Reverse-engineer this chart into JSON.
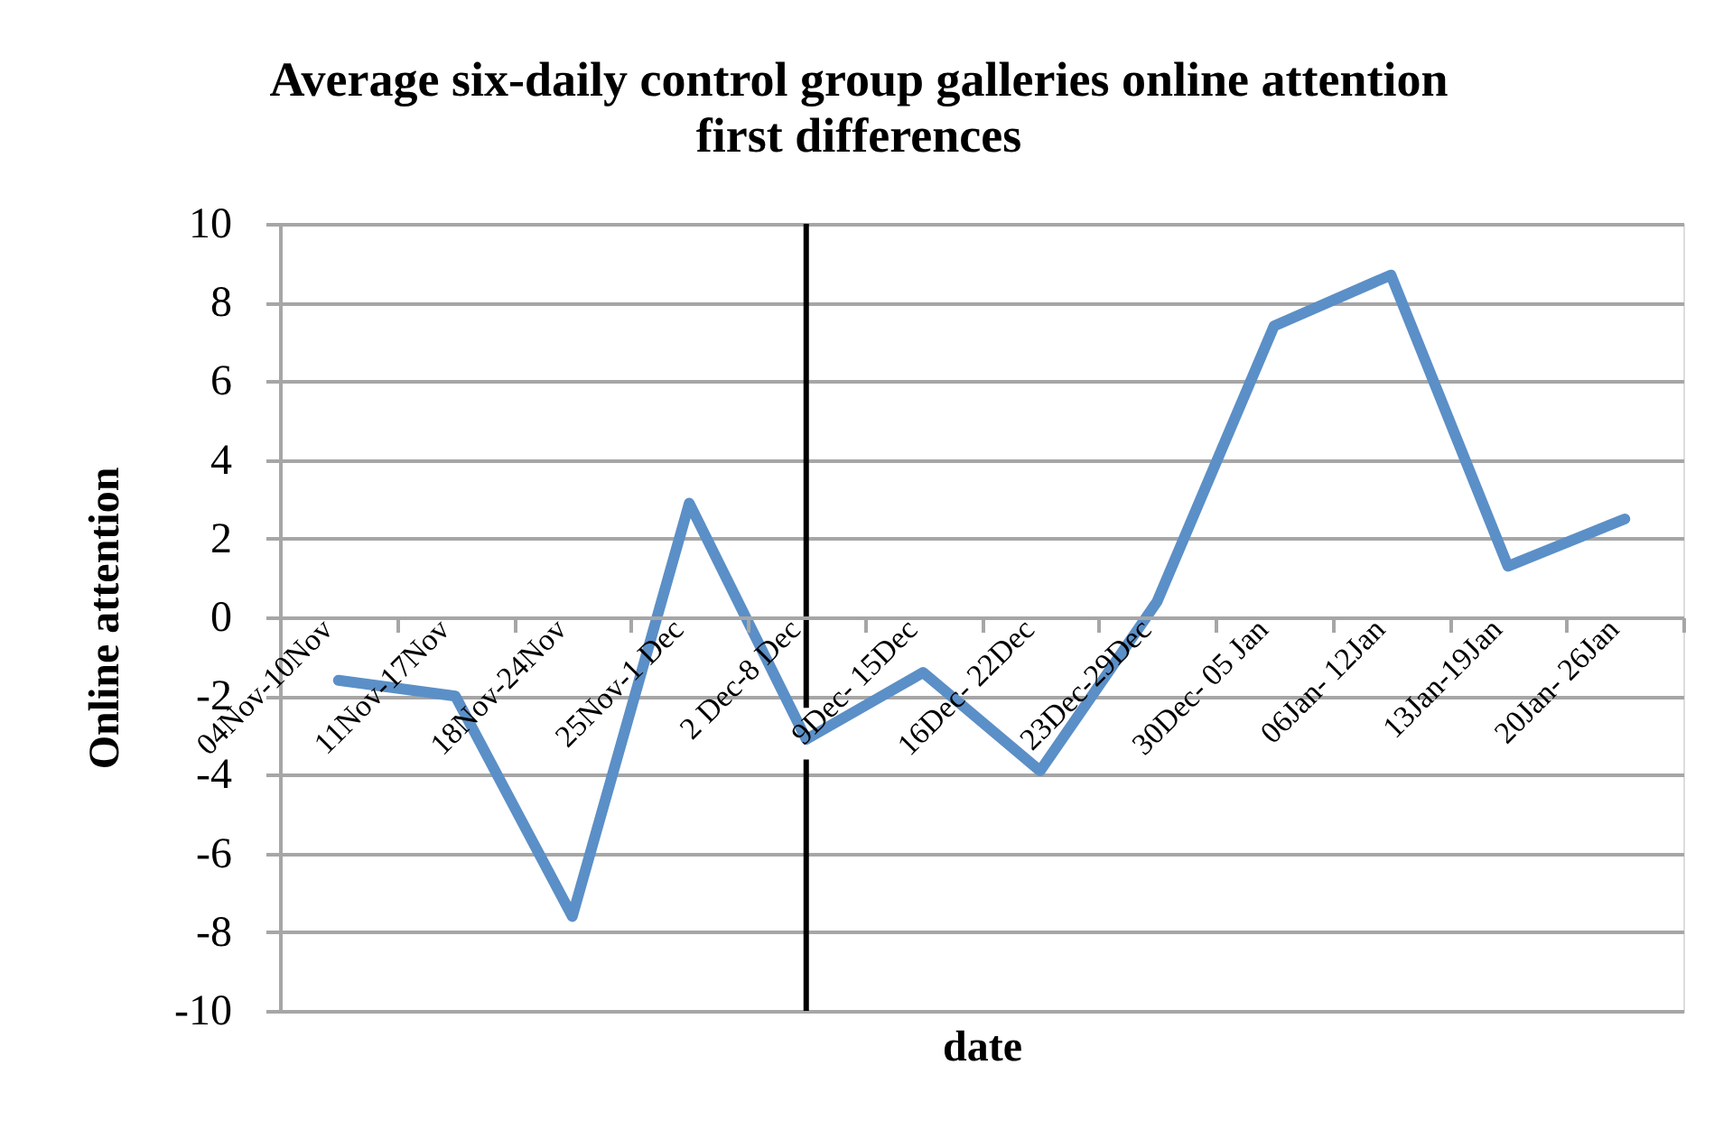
{
  "chart_data": {
    "type": "line",
    "title": "Average six-daily control group galleries online attention\nfirst differences",
    "xlabel": "date",
    "ylabel": "Online attention",
    "categories": [
      "04Nov-10Nov",
      "11Nov-17Nov",
      "18Nov-24Nov",
      "25Nov-1 Dec",
      "2 Dec-8 Dec",
      "9Dec- 15Dec",
      "16Dec- 22Dec",
      "23Dec-29Dec",
      "30Dec- 05 Jan",
      "06Jan- 12Jan",
      "13Jan-19Jan",
      "20Jan- 26Jan"
    ],
    "series": [
      {
        "color": "#5b8fc7",
        "values": [
          -1.6,
          -2.0,
          -7.6,
          2.9,
          -3.1,
          -1.4,
          -3.9,
          0.4,
          7.4,
          8.7,
          1.3,
          2.5
        ]
      }
    ],
    "ylim": [
      -10,
      10
    ],
    "yticks": [
      -10,
      -8,
      -6,
      -4,
      -2,
      0,
      2,
      4,
      6,
      8,
      10
    ],
    "grid": "y",
    "line_style": "solid",
    "ref_lines": [
      {
        "axis": "x",
        "value": "2 Dec-8 Dec",
        "color": "#000000"
      }
    ]
  }
}
